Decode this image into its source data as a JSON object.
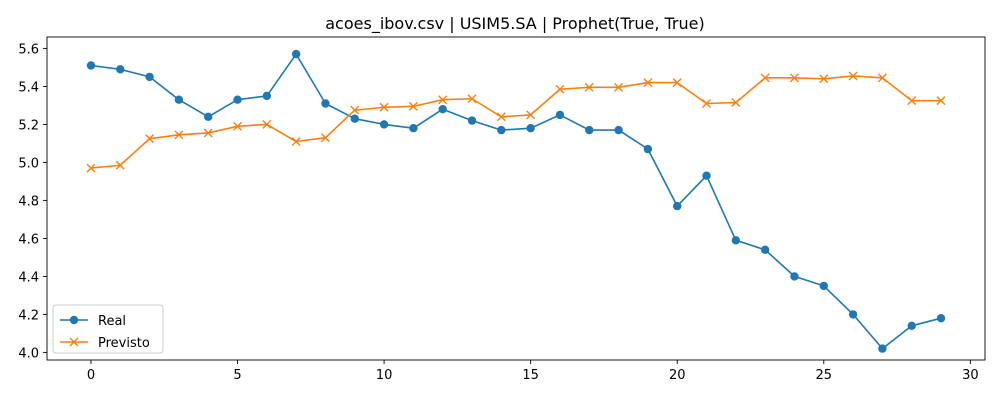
{
  "chart_data": {
    "type": "line",
    "title": "acoes_ibov.csv | USIM5.SA | Prophet(True, True)",
    "xlabel": "",
    "ylabel": "",
    "xlim": [
      -1.5,
      30.5
    ],
    "ylim": [
      3.96,
      5.66
    ],
    "xticks": [
      0,
      5,
      10,
      15,
      20,
      25,
      30
    ],
    "yticks": [
      4.0,
      4.2,
      4.4,
      4.6,
      4.8,
      5.0,
      5.2,
      5.4,
      5.6
    ],
    "ytick_labels": [
      "4.0",
      "4.2",
      "4.4",
      "4.6",
      "4.8",
      "5.0",
      "5.2",
      "5.4",
      "5.6"
    ],
    "grid": false,
    "legend_position": "lower-left",
    "x": [
      0,
      1,
      2,
      3,
      4,
      5,
      6,
      7,
      8,
      9,
      10,
      11,
      12,
      13,
      14,
      15,
      16,
      17,
      18,
      19,
      20,
      21,
      22,
      23,
      24,
      25,
      26,
      27,
      28,
      29
    ],
    "series": [
      {
        "name": "Real",
        "color": "#1f77b4",
        "marker": "circle",
        "values": [
          5.51,
          5.49,
          5.45,
          5.33,
          5.24,
          5.33,
          5.35,
          5.57,
          5.31,
          5.23,
          5.2,
          5.18,
          5.28,
          5.22,
          5.17,
          5.18,
          5.25,
          5.17,
          5.17,
          5.07,
          4.77,
          4.93,
          4.59,
          4.54,
          4.4,
          4.35,
          4.2,
          4.02,
          4.14,
          4.18
        ]
      },
      {
        "name": "Previsto",
        "color": "#ff7f0e",
        "marker": "x",
        "values": [
          4.97,
          4.985,
          5.125,
          5.145,
          5.155,
          5.19,
          5.2,
          5.11,
          5.13,
          5.275,
          5.29,
          5.295,
          5.33,
          5.335,
          5.24,
          5.25,
          5.385,
          5.395,
          5.395,
          5.42,
          5.42,
          5.31,
          5.315,
          5.445,
          5.445,
          5.44,
          5.455,
          5.445,
          5.325,
          5.325
        ]
      }
    ]
  }
}
